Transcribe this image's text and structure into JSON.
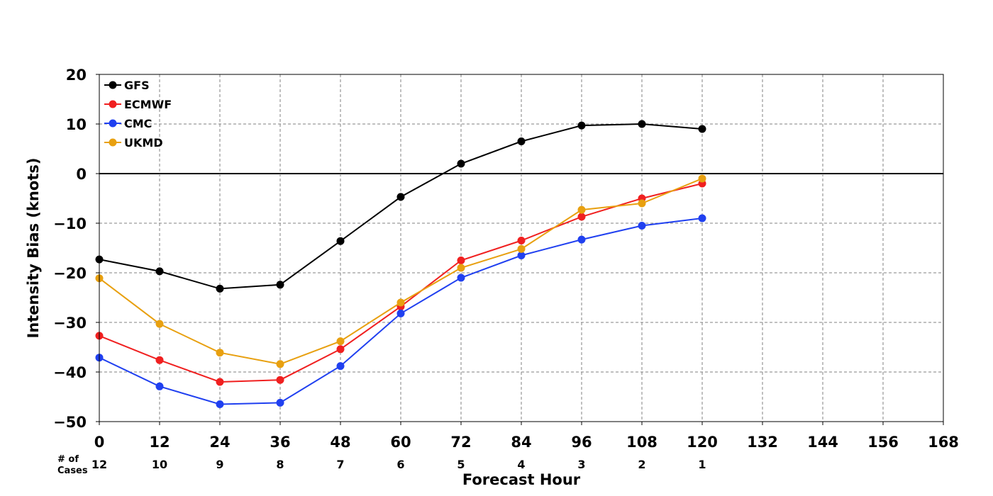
{
  "chart_data": {
    "type": "line",
    "xlabel": "Forecast Hour",
    "ylabel": "Intensity Bias (knots)",
    "xlim": [
      0,
      168
    ],
    "ylim": [
      -50,
      20
    ],
    "x_ticks": [
      "0",
      "12",
      "24",
      "36",
      "48",
      "60",
      "72",
      "84",
      "96",
      "108",
      "120",
      "132",
      "144",
      "156",
      "168"
    ],
    "y_ticks": [
      "20",
      "10",
      "0",
      "−10",
      "−20",
      "−30",
      "−40",
      "−50"
    ],
    "grid": true,
    "legend_position": "top-left",
    "x": [
      0,
      12,
      24,
      36,
      48,
      60,
      72,
      84,
      96,
      108,
      120
    ],
    "cases_label_line1": "# of",
    "cases_label_line2": "Cases",
    "cases": [
      "12",
      "10",
      "9",
      "8",
      "7",
      "6",
      "5",
      "4",
      "3",
      "2",
      "1"
    ],
    "series": [
      {
        "name": "GFS",
        "color": "#000000",
        "values": [
          -17.3,
          -19.7,
          -23.2,
          -22.4,
          -13.6,
          -4.7,
          2.0,
          6.5,
          9.7,
          10.0,
          9.0
        ]
      },
      {
        "name": "ECMWF",
        "color": "#f02020",
        "values": [
          -32.7,
          -37.6,
          -42.0,
          -41.6,
          -35.4,
          -26.8,
          -17.5,
          -13.5,
          -8.7,
          -5.0,
          -2.0
        ]
      },
      {
        "name": "CMC",
        "color": "#2040f0",
        "values": [
          -37.1,
          -42.9,
          -46.5,
          -46.2,
          -38.8,
          -28.2,
          -21.0,
          -16.5,
          -13.3,
          -10.5,
          -9.0
        ]
      },
      {
        "name": "UKMD",
        "color": "#e8a010",
        "values": [
          -21.1,
          -30.3,
          -36.1,
          -38.4,
          -33.8,
          -26.0,
          -19.0,
          -15.2,
          -7.3,
          -6.0,
          -1.0
        ]
      }
    ]
  }
}
